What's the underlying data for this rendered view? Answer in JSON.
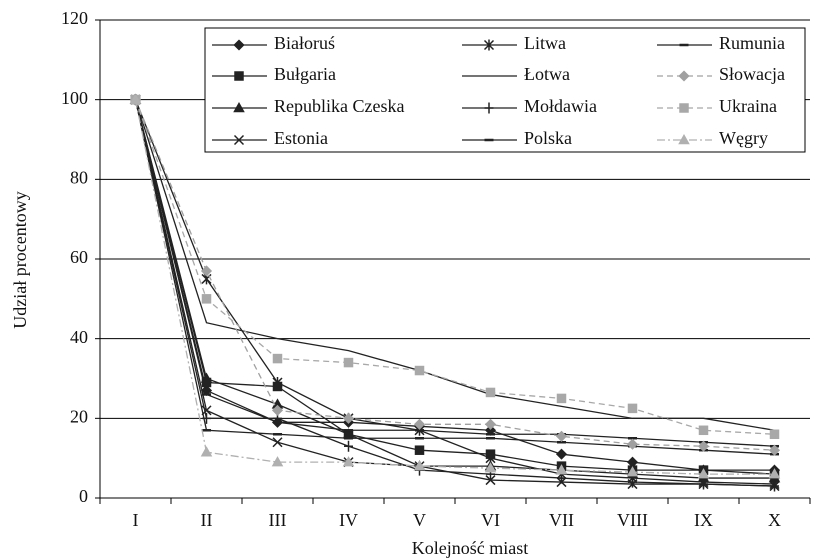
{
  "chart_data": {
    "type": "line",
    "x_label": "Kolejność miast",
    "y_label": "Udział procentowy",
    "categories": [
      "I",
      "II",
      "III",
      "IV",
      "V",
      "VI",
      "VII",
      "VIII",
      "IX",
      "X"
    ],
    "ylim": [
      0,
      120
    ],
    "yticks": [
      0,
      20,
      40,
      60,
      80,
      100,
      120
    ],
    "grid": true,
    "series": [
      {
        "name": "Białoruś",
        "color": "#222222",
        "marker": "diamond",
        "dash": "solid",
        "values": [
          100,
          27,
          19,
          19,
          18,
          17,
          11,
          9,
          7,
          7
        ]
      },
      {
        "name": "Bułgaria",
        "color": "#222222",
        "marker": "square",
        "dash": "solid",
        "values": [
          100,
          29,
          28,
          16,
          12,
          11,
          8,
          7,
          7,
          6
        ]
      },
      {
        "name": "Republika Czeska",
        "color": "#222222",
        "marker": "triangle",
        "dash": "solid",
        "values": [
          100,
          30,
          23.5,
          16,
          8,
          8,
          7,
          6,
          5,
          5
        ]
      },
      {
        "name": "Estonia",
        "color": "#222222",
        "marker": "x",
        "dash": "solid",
        "values": [
          100,
          22,
          14,
          9,
          8,
          4.5,
          4,
          3.5,
          3.5,
          3
        ]
      },
      {
        "name": "Litwa",
        "color": "#222222",
        "marker": "star",
        "dash": "solid",
        "values": [
          100,
          55,
          29,
          20,
          17,
          10,
          6,
          5,
          4,
          3.5
        ]
      },
      {
        "name": "Łotwa",
        "color": "#222222",
        "marker": "none",
        "dash": "solid",
        "values": [
          100,
          44,
          40,
          37,
          32,
          26,
          23,
          20,
          20,
          17
        ]
      },
      {
        "name": "Mołdawia",
        "color": "#222222",
        "marker": "plus",
        "dash": "solid",
        "values": [
          100,
          20,
          20,
          13,
          7,
          6,
          5,
          4,
          3.5,
          3
        ]
      },
      {
        "name": "Polska",
        "color": "#222222",
        "marker": "dash",
        "dash": "solid",
        "values": [
          100,
          17,
          16,
          15,
          15,
          15,
          14,
          13,
          12,
          11
        ]
      },
      {
        "name": "Rumunia",
        "color": "#222222",
        "marker": "dash",
        "dash": "solid",
        "values": [
          100,
          26,
          19,
          17,
          17,
          16,
          16,
          15,
          14,
          13
        ]
      },
      {
        "name": "Słowacja",
        "color": "#a0a0a0",
        "marker": "diamond",
        "dash": "dashed",
        "values": [
          100,
          57,
          22,
          20,
          18.5,
          18.5,
          15.5,
          13.5,
          13,
          12
        ]
      },
      {
        "name": "Ukraina",
        "color": "#a8a8a8",
        "marker": "square",
        "dash": "dashed",
        "values": [
          100,
          50,
          35,
          34,
          32,
          26.5,
          25,
          22.5,
          17,
          16
        ]
      },
      {
        "name": "Węgry",
        "color": "#b0b0b0",
        "marker": "triangle",
        "dash": "dashdot",
        "values": [
          100,
          11.5,
          9,
          9,
          8,
          7.5,
          7,
          6.5,
          6,
          6
        ]
      }
    ]
  }
}
